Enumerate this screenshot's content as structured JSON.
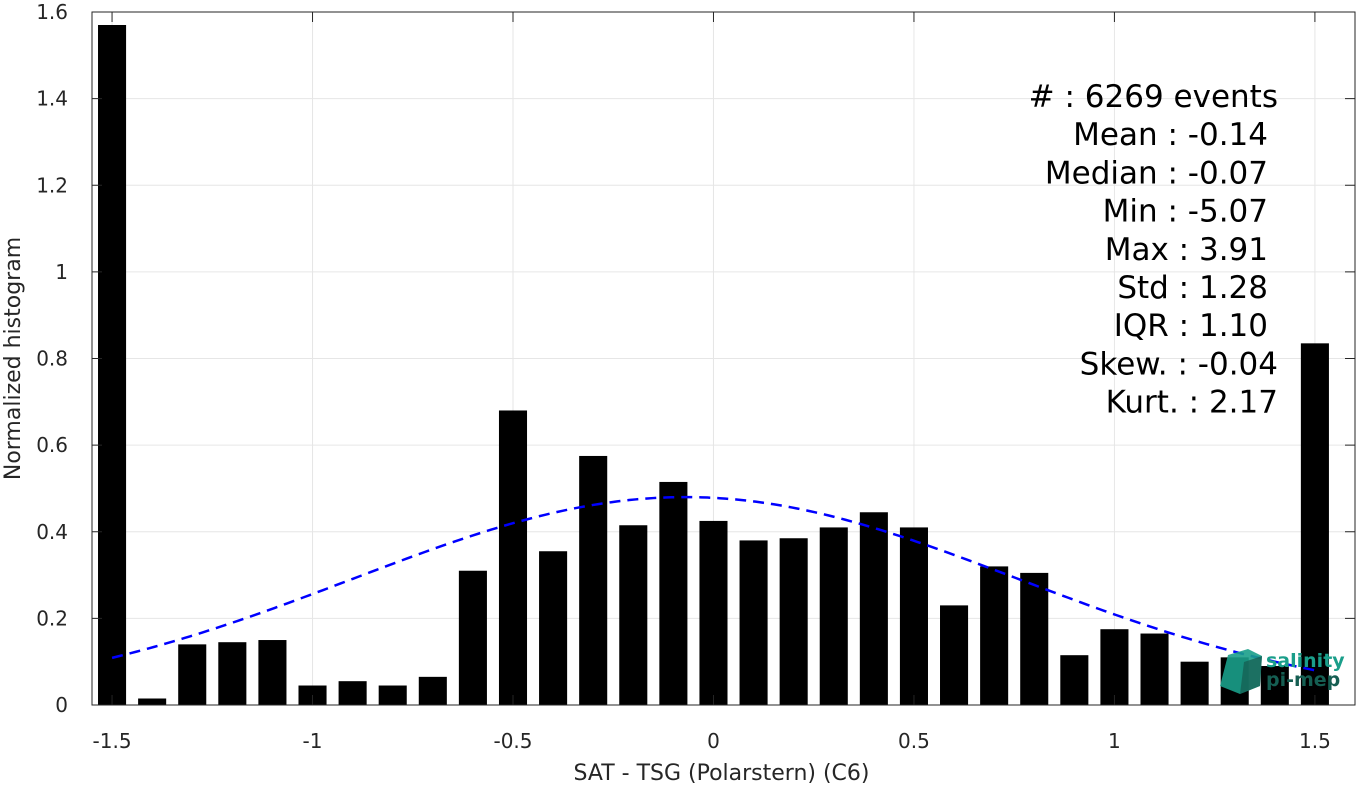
{
  "chart_data": {
    "type": "bar",
    "xlabel": "SAT - TSG (Polarstern) (C6)",
    "ylabel": "Normalized histogram",
    "xlim": [
      -1.55,
      1.6
    ],
    "ylim": [
      0,
      1.6
    ],
    "grid": true,
    "x_ticks": [
      -1.5,
      -1,
      -0.5,
      0,
      0.5,
      1,
      1.5
    ],
    "x_tick_labels": [
      "-1.5",
      "-1",
      "-0.5",
      "0",
      "0.5",
      "1",
      "1.5"
    ],
    "y_ticks": [
      0,
      0.2,
      0.4,
      0.6,
      0.8,
      1,
      1.2,
      1.4,
      1.6
    ],
    "y_tick_labels": [
      "0",
      "0.2",
      "0.4",
      "0.6",
      "0.8",
      "1",
      "1.2",
      "1.4",
      "1.6"
    ],
    "bar_width": 0.07,
    "bar_color": "#000000",
    "x": [
      -1.5,
      -1.4,
      -1.3,
      -1.2,
      -1.1,
      -1.0,
      -0.9,
      -0.8,
      -0.7,
      -0.6,
      -0.5,
      -0.4,
      -0.3,
      -0.2,
      -0.1,
      0.0,
      0.1,
      0.2,
      0.3,
      0.4,
      0.5,
      0.6,
      0.7,
      0.8,
      0.9,
      1.0,
      1.1,
      1.2,
      1.3,
      1.4,
      1.5
    ],
    "values": [
      1.57,
      0.015,
      0.14,
      0.145,
      0.15,
      0.045,
      0.055,
      0.045,
      0.065,
      0.31,
      0.68,
      0.355,
      0.575,
      0.415,
      0.515,
      0.425,
      0.38,
      0.385,
      0.41,
      0.445,
      0.41,
      0.23,
      0.32,
      0.305,
      0.115,
      0.175,
      0.165,
      0.1,
      0.11,
      0.09,
      0.835
    ],
    "fit_curve": {
      "style": "dashed",
      "color": "#0000ff",
      "mean": -0.07,
      "std": 0.83,
      "peak": 0.48,
      "x_range": [
        -1.5,
        1.5
      ]
    }
  },
  "stats_lines": [
    {
      "text": "#  : 6269 events",
      "anchor_offset": 10
    },
    {
      "text": "Mean : -0.14",
      "anchor_offset": 0
    },
    {
      "text": "Median : -0.07",
      "anchor_offset": 0
    },
    {
      "text": "Min : -5.07",
      "anchor_offset": 0
    },
    {
      "text": "Max : 3.91",
      "anchor_offset": 0
    },
    {
      "text": "Std : 1.28",
      "anchor_offset": 0
    },
    {
      "text": "IQR : 1.10",
      "anchor_offset": 0
    },
    {
      "text": "Skew. : -0.04",
      "anchor_offset": 10
    },
    {
      "text": "Kurt. : 2.17",
      "anchor_offset": 10
    }
  ],
  "logo": {
    "line1": "salinity",
    "line2": "pi-mep",
    "color_primary": "#1a9e8a",
    "color_secondary": "#155e52"
  }
}
